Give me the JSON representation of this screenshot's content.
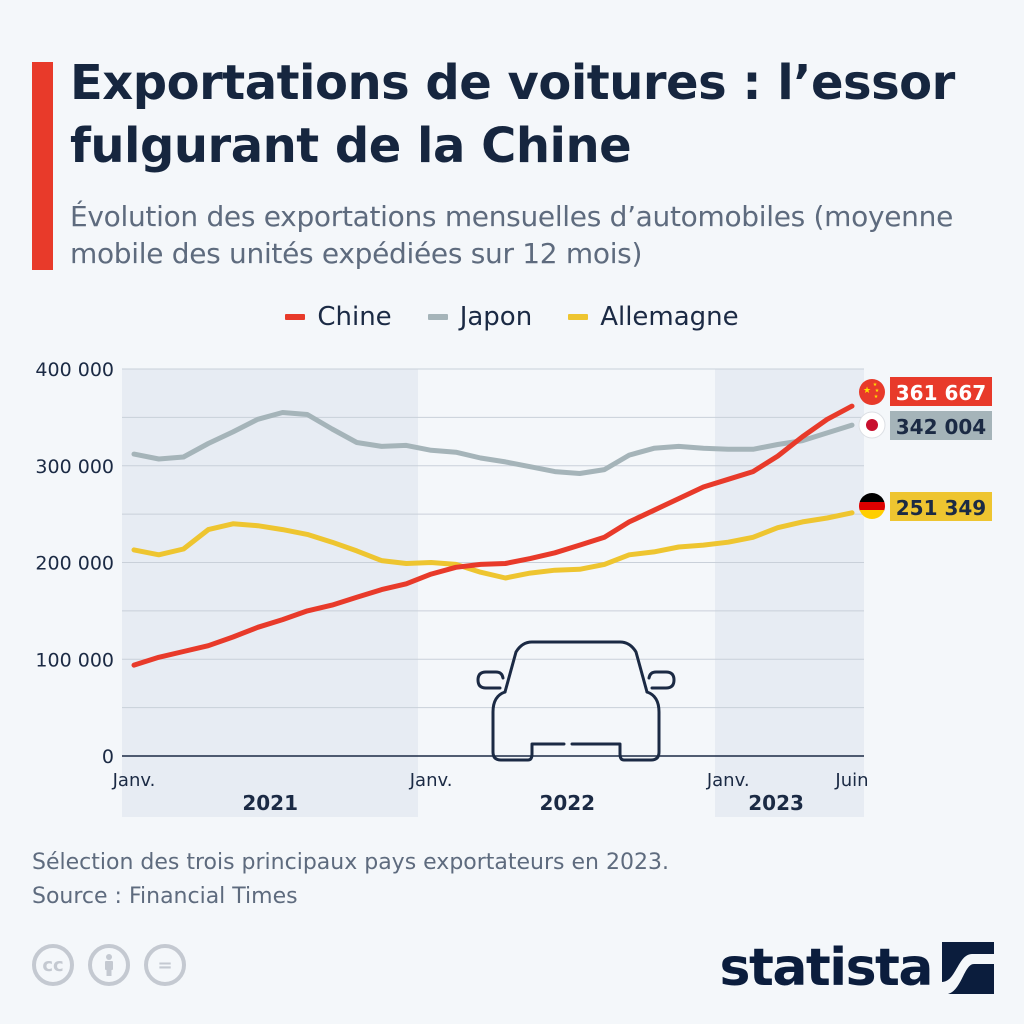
{
  "header": {
    "title": "Exportations de voitures : l’essor fulgurant de la Chine",
    "subtitle": "Évolution des exportations mensuelles d’automobiles (moyenne mobile des unités expédiées sur 12 mois)"
  },
  "colors": {
    "accent": "#e83a2a",
    "chine": "#e83a2a",
    "japon": "#a5b4b9",
    "allemagne": "#eec530"
  },
  "chart_data": {
    "type": "line",
    "title": "Exportations de voitures : l’essor fulgurant de la Chine",
    "subtitle": "Évolution des exportations mensuelles d’automobiles (moyenne mobile des unités expédiées sur 12 mois)",
    "y_ticks": [
      "400 000",
      "300 000",
      "200 000",
      "100 000",
      "0"
    ],
    "ylim": [
      0,
      400000
    ],
    "x_ticks": [
      "Janv.",
      "Janv.",
      "Janv.",
      "Juin"
    ],
    "years": [
      "2021",
      "2022",
      "2023"
    ],
    "x_start": "2021-01",
    "x_end": "2023-06",
    "grid": true,
    "legend_position": "top-center",
    "series": [
      {
        "name": "Chine",
        "end_label": "361 667",
        "values": [
          94000,
          102000,
          108000,
          114000,
          123000,
          133000,
          141000,
          150000,
          156000,
          164000,
          172000,
          178000,
          188000,
          195000,
          198000,
          199000,
          204000,
          210000,
          218000,
          226000,
          242000,
          254000,
          266000,
          278000,
          286000,
          294000,
          310000,
          330000,
          348000,
          361667
        ]
      },
      {
        "name": "Japon",
        "end_label": "342 004",
        "values": [
          312000,
          307000,
          309000,
          323000,
          335000,
          348000,
          355000,
          353000,
          338000,
          324000,
          320000,
          321000,
          316000,
          314000,
          308000,
          304000,
          299000,
          294000,
          292000,
          296000,
          311000,
          318000,
          320000,
          318000,
          317000,
          317000,
          322000,
          326000,
          334000,
          342004
        ]
      },
      {
        "name": "Allemagne",
        "end_label": "251 349",
        "values": [
          213000,
          208000,
          214000,
          234000,
          240000,
          238000,
          234000,
          229000,
          221000,
          212000,
          202000,
          199000,
          200000,
          198000,
          190000,
          184000,
          189000,
          192000,
          193000,
          198000,
          208000,
          211000,
          216000,
          218000,
          221000,
          226000,
          236000,
          242000,
          246000,
          251349
        ]
      }
    ]
  },
  "footer": {
    "note": "Sélection des trois principaux pays exportateurs en 2023.",
    "source": "Source : Financial Times",
    "license_icons": [
      "cc-icon",
      "attribution-icon",
      "no-derivatives-icon"
    ],
    "cc_label": "cc",
    "nd_label": "=",
    "logo": "statista"
  }
}
